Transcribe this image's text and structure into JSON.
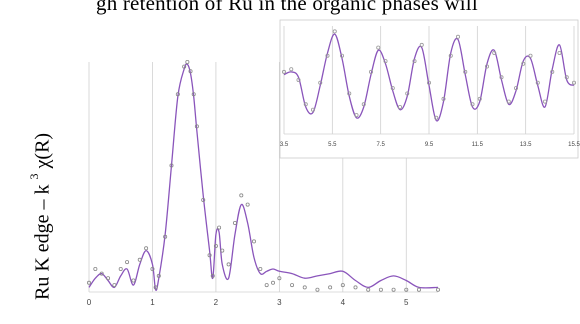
{
  "header_text": "gh retention of Ru in the organic phases will",
  "colors": {
    "fit": "#8a55bb",
    "data": "#888888",
    "grid": "#d0d0d0"
  },
  "chart_data": [
    {
      "type": "line",
      "title": "",
      "ylabel_main": "Ru K edge – k ",
      "ylabel_sup": "3",
      "ylabel_end": " χ(R)",
      "xlabel": "",
      "xlim": [
        0,
        5.5
      ],
      "ylim": [
        0,
        1
      ],
      "xticks": [
        "0",
        "1",
        "2",
        "3",
        "4",
        "5"
      ],
      "grid": "vertical",
      "series": [
        {
          "style": "solid",
          "color": "#8a55bb",
          "x": [
            0.0,
            0.1,
            0.2,
            0.3,
            0.4,
            0.5,
            0.6,
            0.7,
            0.8,
            0.9,
            1.0,
            1.05,
            1.1,
            1.2,
            1.3,
            1.4,
            1.5,
            1.55,
            1.6,
            1.65,
            1.7,
            1.8,
            1.9,
            1.95,
            2.0,
            2.05,
            2.1,
            2.2,
            2.3,
            2.4,
            2.5,
            2.6,
            2.7,
            2.8,
            2.9,
            3.0,
            3.2,
            3.4,
            3.6,
            3.8,
            4.0,
            4.2,
            4.4,
            4.6,
            4.8,
            5.0,
            5.2,
            5.5
          ],
          "y": [
            0.02,
            0.06,
            0.08,
            0.05,
            0.02,
            0.07,
            0.1,
            0.03,
            0.12,
            0.18,
            0.12,
            0.01,
            0.06,
            0.25,
            0.55,
            0.85,
            0.97,
            0.99,
            0.95,
            0.85,
            0.7,
            0.42,
            0.18,
            0.06,
            0.25,
            0.26,
            0.12,
            0.06,
            0.25,
            0.38,
            0.3,
            0.15,
            0.08,
            0.09,
            0.1,
            0.09,
            0.08,
            0.06,
            0.07,
            0.08,
            0.09,
            0.05,
            0.02,
            0.05,
            0.07,
            0.05,
            0.02,
            0.02
          ]
        },
        {
          "style": "dots",
          "color": "#888888",
          "x": [
            0.0,
            0.1,
            0.2,
            0.3,
            0.4,
            0.5,
            0.6,
            0.7,
            0.8,
            0.9,
            1.0,
            1.05,
            1.1,
            1.2,
            1.3,
            1.4,
            1.5,
            1.55,
            1.6,
            1.65,
            1.7,
            1.8,
            1.9,
            1.95,
            2.0,
            2.05,
            2.1,
            2.2,
            2.3,
            2.4,
            2.5,
            2.6,
            2.7,
            2.8,
            2.9,
            3.0,
            3.2,
            3.4,
            3.6,
            3.8,
            4.0,
            4.2,
            4.4,
            4.6,
            4.8,
            5.0,
            5.2,
            5.5
          ],
          "y": [
            0.04,
            0.1,
            0.08,
            0.06,
            0.03,
            0.1,
            0.13,
            0.05,
            0.14,
            0.19,
            0.1,
            0.02,
            0.07,
            0.24,
            0.55,
            0.86,
            0.98,
            1.0,
            0.96,
            0.86,
            0.72,
            0.4,
            0.16,
            0.07,
            0.2,
            0.28,
            0.18,
            0.12,
            0.3,
            0.42,
            0.38,
            0.22,
            0.1,
            0.03,
            0.04,
            0.06,
            0.03,
            0.02,
            0.01,
            0.02,
            0.03,
            0.02,
            0.01,
            0.01,
            0.01,
            0.01,
            0.01,
            0.01
          ]
        }
      ]
    },
    {
      "type": "line",
      "title": "",
      "xlabel": "",
      "xlim": [
        3.5,
        15.5
      ],
      "ylim": [
        -1,
        1
      ],
      "xticks": [
        "3.5",
        "5.5",
        "7.5",
        "9.5",
        "11.5",
        "13.5",
        "15.5"
      ],
      "grid": "vertical",
      "series": [
        {
          "style": "solid",
          "color": "#8a55bb",
          "x": [
            3.5,
            3.8,
            4.1,
            4.4,
            4.7,
            5.0,
            5.3,
            5.6,
            5.9,
            6.2,
            6.5,
            6.8,
            7.1,
            7.4,
            7.7,
            8.0,
            8.3,
            8.6,
            8.9,
            9.2,
            9.5,
            9.8,
            10.1,
            10.4,
            10.7,
            11.0,
            11.3,
            11.6,
            11.9,
            12.2,
            12.5,
            12.8,
            13.1,
            13.4,
            13.7,
            14.0,
            14.3,
            14.6,
            14.9,
            15.2,
            15.5
          ],
          "y": [
            0.1,
            0.15,
            0.05,
            -0.5,
            -0.6,
            -0.1,
            0.5,
            0.85,
            0.4,
            -0.3,
            -0.7,
            -0.5,
            0.1,
            0.55,
            0.3,
            -0.2,
            -0.55,
            -0.3,
            0.4,
            0.6,
            -0.1,
            -0.75,
            -0.4,
            0.5,
            0.75,
            0.1,
            -0.5,
            -0.4,
            0.3,
            0.55,
            0.0,
            -0.45,
            -0.2,
            0.35,
            0.4,
            -0.1,
            -0.5,
            0.2,
            0.65,
            0.0,
            -0.1
          ]
        },
        {
          "style": "dots",
          "color": "#999999",
          "x": [
            3.5,
            3.8,
            4.1,
            4.4,
            4.7,
            5.0,
            5.3,
            5.6,
            5.9,
            6.2,
            6.5,
            6.8,
            7.1,
            7.4,
            7.7,
            8.0,
            8.3,
            8.6,
            8.9,
            9.2,
            9.5,
            9.8,
            10.1,
            10.4,
            10.7,
            11.0,
            11.3,
            11.6,
            11.9,
            12.2,
            12.5,
            12.8,
            13.1,
            13.4,
            13.7,
            14.0,
            14.3,
            14.6,
            14.9,
            15.2,
            15.5
          ],
          "y": [
            0.15,
            0.2,
            0.0,
            -0.45,
            -0.55,
            -0.05,
            0.45,
            0.9,
            0.45,
            -0.25,
            -0.65,
            -0.45,
            0.15,
            0.6,
            0.35,
            -0.15,
            -0.5,
            -0.25,
            0.35,
            0.65,
            -0.05,
            -0.7,
            -0.35,
            0.45,
            0.8,
            0.15,
            -0.45,
            -0.35,
            0.25,
            0.5,
            0.05,
            -0.4,
            -0.15,
            0.3,
            0.45,
            -0.05,
            -0.4,
            0.15,
            0.5,
            0.05,
            -0.05
          ]
        }
      ]
    }
  ]
}
